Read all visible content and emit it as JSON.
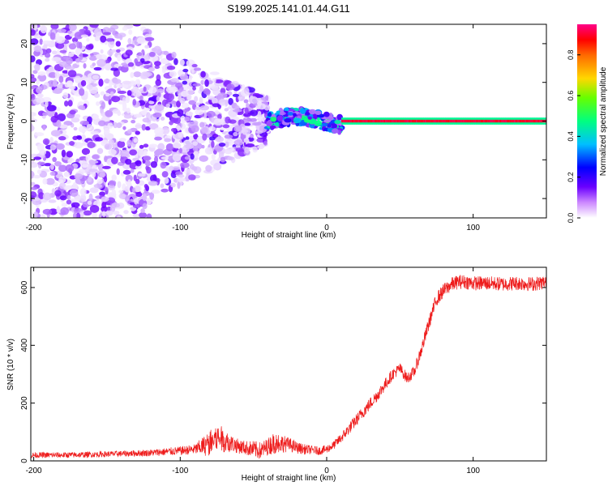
{
  "title": "S199.2025.141.01.44.G11",
  "colors": {
    "snr_line": "#ee1c1c",
    "spectrum_scale": [
      "#ffffff",
      "#e8d8ff",
      "#c7a3ff",
      "#8a2be2",
      "#0000ff",
      "#00bfff",
      "#00ff7f",
      "#7cfc00",
      "#ffd700",
      "#ff8c00",
      "#ff0000",
      "#ff00aa"
    ]
  },
  "chart_data": [
    {
      "type": "heatmap",
      "title": "S199.2025.141.01.44.G11",
      "xlabel": "Height of straight line (km)",
      "ylabel": "Frequency (Hz)",
      "xlim": [
        -202,
        150
      ],
      "ylim": [
        -25,
        25
      ],
      "xticks": [
        "-200",
        "-100",
        "0",
        "100"
      ],
      "yticks": [
        "-20",
        "-10",
        "0",
        "10",
        "20"
      ],
      "colorbar": {
        "label": "Normalized spectral amplitude",
        "range": [
          0,
          0.95
        ],
        "ticks": [
          "0.0",
          "0.2",
          "0.4",
          "0.6",
          "0.8"
        ],
        "placement": "right"
      },
      "regions": [
        {
          "x_range": [
            -202,
            -120
          ],
          "description_value": "scattered",
          "amplitude": [
            0.02,
            0.18
          ],
          "freq_spread": 25
        },
        {
          "x_range": [
            -120,
            -40
          ],
          "description_value": "narrowing",
          "amplitude": [
            0.02,
            0.2
          ],
          "freq_spread_from": 20,
          "freq_spread_to": 6
        },
        {
          "x_range": [
            -40,
            10
          ],
          "description_value": "converging",
          "amplitude": [
            0.1,
            0.5
          ],
          "freq_spread": 2
        },
        {
          "x_range": [
            10,
            150
          ],
          "description_value": "steady line at 0 Hz",
          "amplitude": [
            0.9,
            0.95
          ],
          "freq_spread": 0.7
        }
      ]
    },
    {
      "type": "line",
      "xlabel": "Height of straight line (km)",
      "ylabel": "SNR (10 * v/v)",
      "xlim": [
        -202,
        150
      ],
      "ylim": [
        0,
        670
      ],
      "xticks": [
        "-200",
        "-100",
        "0",
        "100"
      ],
      "yticks": [
        "0",
        "200",
        "400",
        "600"
      ],
      "x": [
        -202,
        -180,
        -160,
        -140,
        -120,
        -100,
        -90,
        -80,
        -75,
        -70,
        -65,
        -60,
        -55,
        -50,
        -45,
        -40,
        -35,
        -30,
        -25,
        -20,
        -15,
        -10,
        -5,
        0,
        5,
        10,
        15,
        20,
        25,
        30,
        35,
        40,
        45,
        50,
        55,
        60,
        65,
        70,
        75,
        80,
        85,
        90,
        95,
        100,
        110,
        120,
        130,
        140,
        150
      ],
      "y": [
        20,
        20,
        22,
        25,
        28,
        35,
        40,
        60,
        80,
        70,
        60,
        50,
        45,
        40,
        35,
        50,
        65,
        60,
        55,
        45,
        40,
        38,
        35,
        40,
        55,
        80,
        110,
        140,
        170,
        200,
        230,
        265,
        300,
        320,
        285,
        310,
        390,
        480,
        560,
        590,
        610,
        620,
        620,
        615,
        615,
        612,
        615,
        612,
        618
      ],
      "noise": [
        10,
        10,
        10,
        10,
        12,
        15,
        18,
        45,
        50,
        40,
        30,
        25,
        25,
        30,
        30,
        30,
        40,
        30,
        25,
        20,
        18,
        15,
        15,
        15,
        15,
        18,
        20,
        22,
        22,
        22,
        22,
        22,
        20,
        20,
        20,
        20,
        25,
        25,
        25,
        25,
        25,
        25,
        25,
        25,
        25,
        25,
        25,
        25,
        25
      ]
    }
  ]
}
